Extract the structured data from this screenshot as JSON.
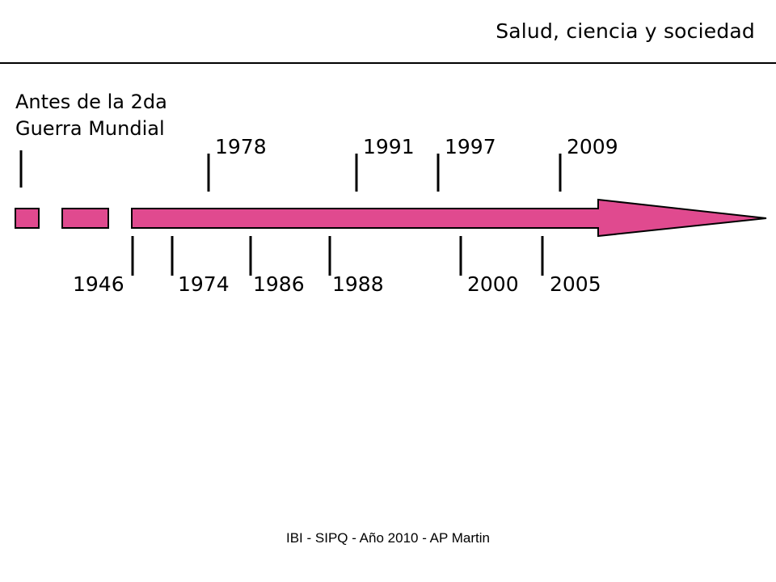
{
  "header": {
    "title": "Salud, ciencia y sociedad"
  },
  "pre_war_label": {
    "line1": "Antes de la 2da",
    "line2": "Guerra Mundial"
  },
  "colors": {
    "timeline_fill": "#e04a8f",
    "outline": "#000000"
  },
  "timeline": {
    "above": [
      "1978",
      "1991",
      "1997",
      "2009"
    ],
    "below": [
      "1946",
      "1974",
      "1986",
      "1988",
      "2000",
      "2005"
    ]
  },
  "footer": {
    "text": "IBI - SIPQ -  Año 2010 - AP Martin"
  }
}
